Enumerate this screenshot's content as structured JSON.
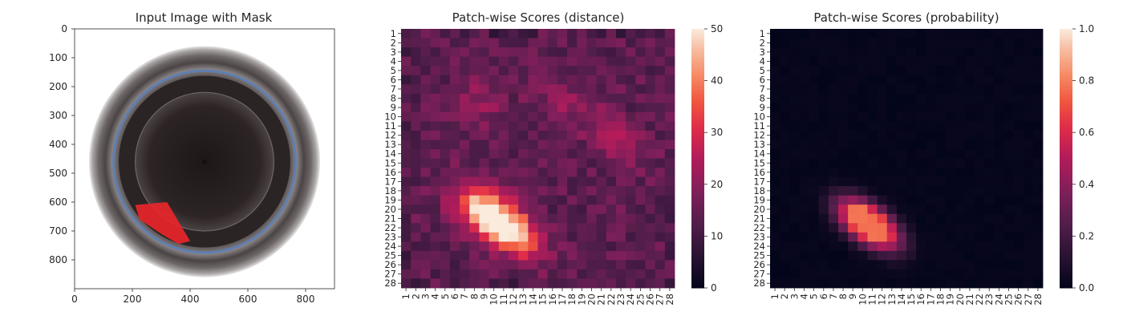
{
  "chart_data": [
    {
      "type": "image",
      "title": "Input Image with Mask",
      "xlim": [
        0,
        900
      ],
      "ylim": [
        900,
        0
      ],
      "xticks": [
        0,
        200,
        400,
        600,
        800
      ],
      "yticks": [
        0,
        100,
        200,
        300,
        400,
        500,
        600,
        700,
        800
      ],
      "object": {
        "description_center": [
          450,
          460
        ],
        "outer_radius": 400,
        "inner_radius": 240,
        "blue_ring_radius": 315
      },
      "mask": {
        "color": "#e8262a",
        "polygon": [
          [
            210,
            610
          ],
          [
            320,
            600
          ],
          [
            400,
            735
          ],
          [
            360,
            745
          ],
          [
            300,
            710
          ],
          [
            225,
            660
          ]
        ]
      }
    },
    {
      "type": "heatmap",
      "title": "Patch-wise Scores (distance)",
      "rows": 28,
      "cols": 28,
      "row_labels": [
        "1",
        "2",
        "3",
        "4",
        "5",
        "6",
        "7",
        "8",
        "9",
        "10",
        "11",
        "12",
        "13",
        "14",
        "15",
        "16",
        "17",
        "18",
        "19",
        "20",
        "21",
        "22",
        "23",
        "24",
        "25",
        "26",
        "27",
        "28"
      ],
      "col_labels": [
        "1",
        "2",
        "3",
        "4",
        "5",
        "6",
        "7",
        "8",
        "9",
        "10",
        "11",
        "12",
        "13",
        "14",
        "15",
        "16",
        "17",
        "18",
        "19",
        "20",
        "21",
        "22",
        "23",
        "24",
        "25",
        "26",
        "27",
        "28"
      ],
      "colorbar": {
        "min": 0,
        "max": 50,
        "ticks": [
          0,
          10,
          20,
          30,
          40,
          50
        ],
        "colormap": "rocket"
      },
      "background_value": 14,
      "hotspots": [
        {
          "row": 21.3,
          "col": 10.3,
          "peak": 50,
          "sigma_along": 3.1,
          "sigma_across": 1.55,
          "angle_deg": 38
        },
        {
          "row": 8.3,
          "col": 8.5,
          "peak": 8,
          "sigma_along": 1.8,
          "sigma_across": 1.6,
          "angle_deg": 0
        },
        {
          "row": 8.5,
          "col": 17.5,
          "peak": 6,
          "sigma_along": 2.2,
          "sigma_across": 1.6,
          "angle_deg": 0
        },
        {
          "row": 12.5,
          "col": 22.5,
          "peak": 9,
          "sigma_along": 2.5,
          "sigma_across": 1.5,
          "angle_deg": 35
        }
      ]
    },
    {
      "type": "heatmap",
      "title": "Patch-wise Scores (probability)",
      "rows": 28,
      "cols": 28,
      "row_labels": [
        "1",
        "2",
        "3",
        "4",
        "5",
        "6",
        "7",
        "8",
        "9",
        "10",
        "11",
        "12",
        "13",
        "14",
        "15",
        "16",
        "17",
        "18",
        "19",
        "20",
        "21",
        "22",
        "23",
        "24",
        "25",
        "26",
        "27",
        "28"
      ],
      "col_labels": [
        "1",
        "2",
        "3",
        "4",
        "5",
        "6",
        "7",
        "8",
        "9",
        "10",
        "11",
        "12",
        "13",
        "14",
        "15",
        "16",
        "17",
        "18",
        "19",
        "20",
        "21",
        "22",
        "23",
        "24",
        "25",
        "26",
        "27",
        "28"
      ],
      "colorbar": {
        "min": 0.0,
        "max": 1.0,
        "ticks": [
          "0.0",
          "0.2",
          "0.4",
          "0.6",
          "0.8",
          "1.0"
        ],
        "colormap": "rocket"
      },
      "background_value": 0.0,
      "hotspots": [
        {
          "row": 21.6,
          "col": 10.6,
          "peak": 0.8,
          "sigma_along": 2.4,
          "sigma_across": 1.25,
          "angle_deg": 38,
          "cap": 0.76
        }
      ]
    }
  ]
}
